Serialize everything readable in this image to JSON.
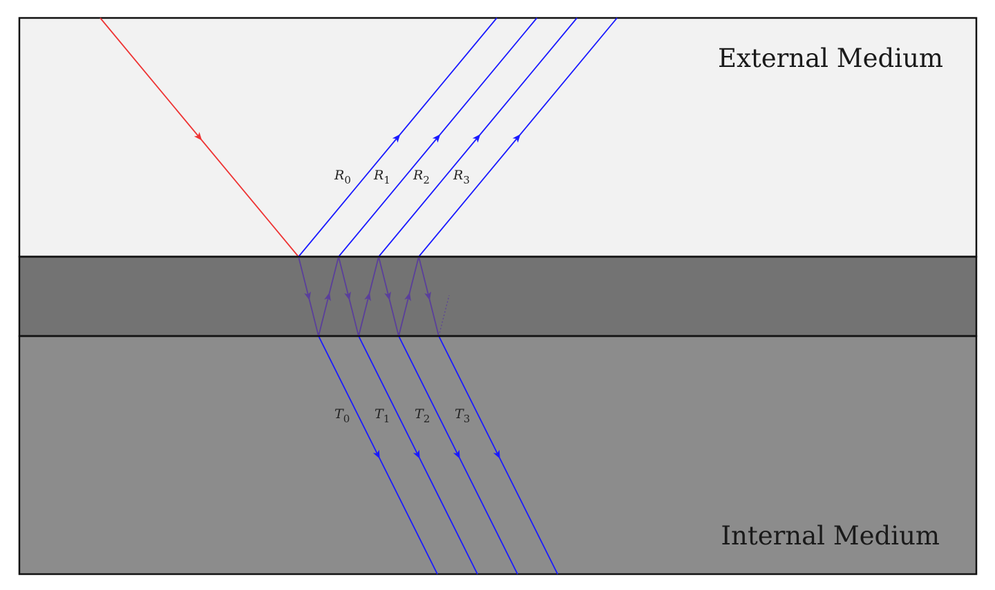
{
  "media": {
    "external": {
      "label": "External Medium",
      "fill": "#f2f2f2"
    },
    "film": {
      "fill": "#737373"
    },
    "internal": {
      "label": "Internal Medium",
      "fill": "#8c8c8c"
    }
  },
  "colors": {
    "incident": "#ee3333",
    "ray": "#1a1aff",
    "internal_ray": "#5a3f9a",
    "border": "#111111"
  },
  "reflected_rays": [
    {
      "symbol": "R",
      "index": "0"
    },
    {
      "symbol": "R",
      "index": "1"
    },
    {
      "symbol": "R",
      "index": "2"
    },
    {
      "symbol": "R",
      "index": "3"
    }
  ],
  "transmitted_rays": [
    {
      "symbol": "T",
      "index": "0"
    },
    {
      "symbol": "T",
      "index": "1"
    },
    {
      "symbol": "T",
      "index": "2"
    },
    {
      "symbol": "T",
      "index": "3"
    }
  ]
}
